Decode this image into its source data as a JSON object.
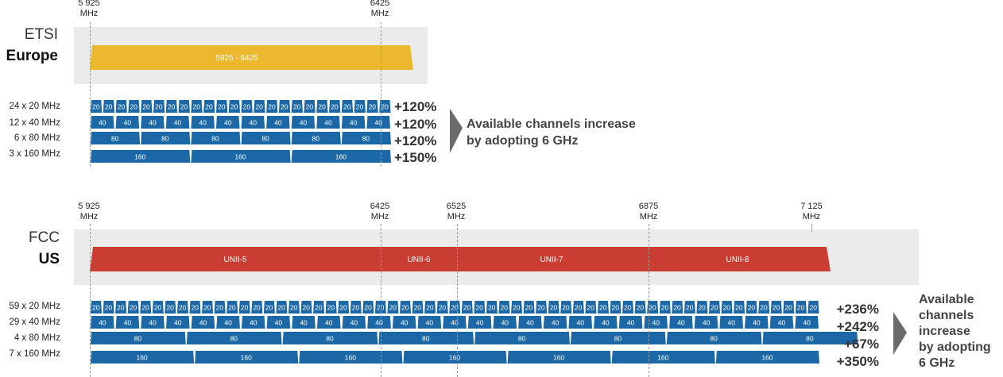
{
  "europe": {
    "region": "ETSI",
    "subtitle": "Europe",
    "freq_labels": [
      {
        "value": "5 925",
        "unit": "MHz"
      },
      {
        "value": "6425",
        "unit": "MHz"
      }
    ],
    "band_label": "5925 - 6425",
    "band_color": "#ecb92e",
    "rows": [
      {
        "label": "24 x 20 MHz",
        "pct": "+120%",
        "tile": "20"
      },
      {
        "label": "12 x 40 MHz",
        "pct": "+120%",
        "tile": "40"
      },
      {
        "label": "6 x 80 MHz",
        "pct": "+120%",
        "tile": "80"
      },
      {
        "label": "3 x 160 MHz",
        "pct": "+150%",
        "tile": "160"
      }
    ],
    "arrow_text": [
      "Available channels increase",
      "by adopting 6 GHz"
    ]
  },
  "us": {
    "region": "FCC",
    "subtitle": "US",
    "freq_labels": [
      {
        "value": "5 925",
        "unit": "MHz"
      },
      {
        "value": "6425",
        "unit": "MHz"
      },
      {
        "value": "6525",
        "unit": "MHz"
      },
      {
        "value": "6875",
        "unit": "MHz"
      },
      {
        "value": "7 125",
        "unit": "MHz"
      }
    ],
    "bands": [
      "UNII-5",
      "UNII-6",
      "UNII-7",
      "UNII-8"
    ],
    "band_color": "#c93d32",
    "rows": [
      {
        "label": "59 x 20 MHz",
        "pct": "+236%",
        "tile": "20"
      },
      {
        "label": "29 x 40 MHz",
        "pct": "+242%",
        "tile": "40"
      },
      {
        "label": "4 x 80 MHz",
        "pct": "+67%",
        "tile": "80"
      },
      {
        "label": "7 x 160 MHz",
        "pct": "+350%",
        "tile": "160"
      }
    ],
    "arrow_text": [
      "Available",
      "channels",
      "increase",
      "by adopting",
      "6 GHz"
    ]
  },
  "colors": {
    "channel": "#1c67a6",
    "panel": "#ebebeb",
    "arrow": "#6b6b6b"
  }
}
